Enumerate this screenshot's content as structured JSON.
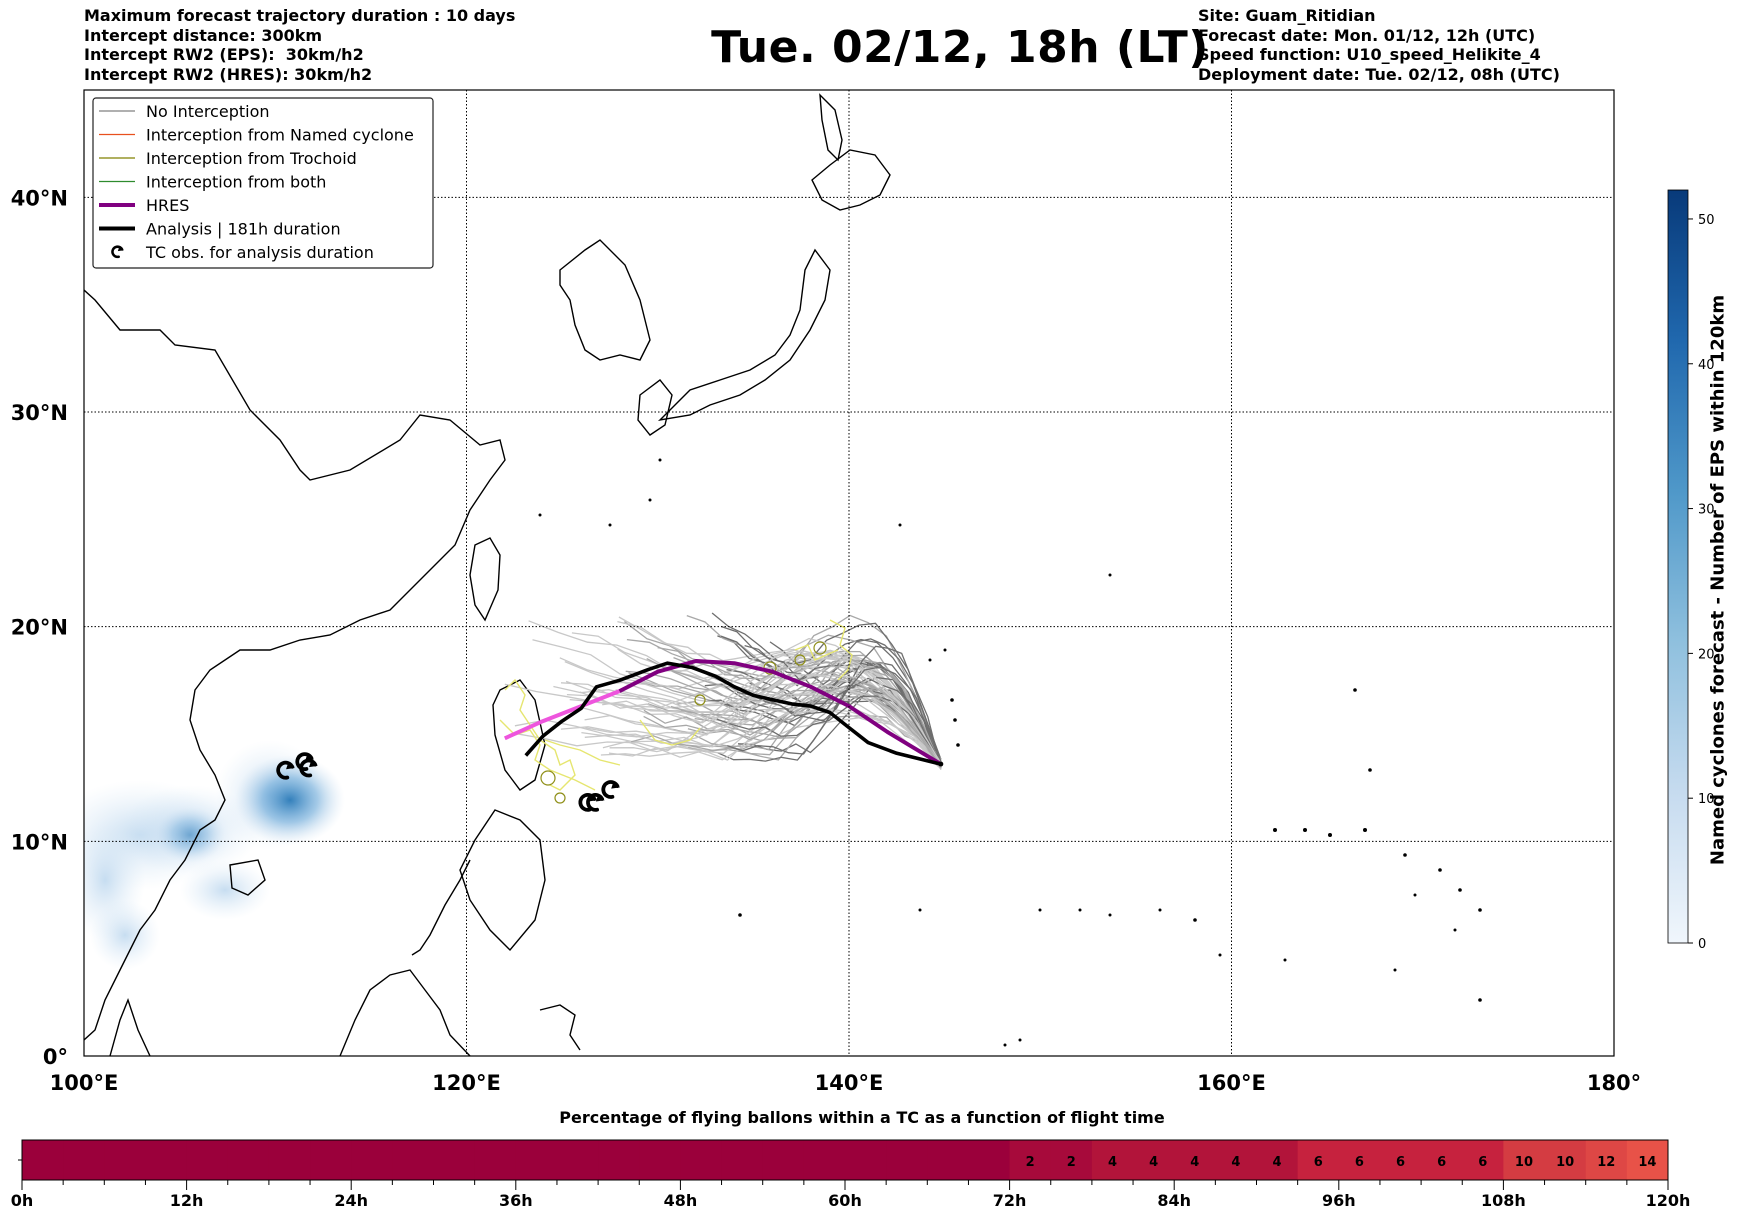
{
  "header": {
    "title": "Tue. 02/12, 18h (LT)",
    "left_lines": [
      "Maximum forecast trajectory duration : 10 days",
      "Intercept distance: 300km",
      "Intercept RW2 (EPS):  30km/h2",
      "Intercept RW2 (HRES): 30km/h2"
    ],
    "right_lines": [
      "Site: Guam_Ritidian",
      "Forecast date: Mon. 01/12, 12h (UTC)",
      "Speed function: U10_speed_Helikite_4",
      "Deployment date: Tue. 02/12, 08h (UTC)"
    ]
  },
  "legend": {
    "entries": [
      {
        "label": "No Interception",
        "color": "#808080",
        "style": "thin"
      },
      {
        "label": "Interception from Named cyclone",
        "color": "#e8501e",
        "style": "thin"
      },
      {
        "label": "Interception from Trochoid",
        "color": "#808000",
        "style": "thin"
      },
      {
        "label": "Interception from both",
        "color": "#2e8b2e",
        "style": "thin"
      },
      {
        "label": "HRES",
        "color": "#800080",
        "style": "thick"
      },
      {
        "label": "Analysis | 181h duration",
        "color": "#000000",
        "style": "thick"
      },
      {
        "label": "TC obs. for analysis duration",
        "color": "#000000",
        "style": "cyclone-symbol"
      }
    ]
  },
  "colors": {
    "no_interception": "#808080",
    "hres": "#800080",
    "hres_early": "#ee55dd",
    "analysis": "#000000",
    "trochoid": "#e6e670",
    "cyclone_density": "#2a7ab8",
    "timeline_dark": "#9b003b",
    "timeline_light": "#dd4a4c"
  },
  "chart_data": [
    {
      "type": "map",
      "projection": "plate-carree",
      "lon_range": [
        100,
        180
      ],
      "lat_range": [
        0,
        45
      ],
      "x_ticks": [
        100,
        120,
        140,
        160,
        180
      ],
      "x_tick_labels": [
        "100°E",
        "120°E",
        "140°E",
        "160°E",
        "180°"
      ],
      "y_ticks": [
        0,
        10,
        20,
        30,
        40
      ],
      "y_tick_labels": [
        "0°",
        "10°N",
        "20°N",
        "30°N",
        "40°N"
      ],
      "grid": true,
      "launch_site": {
        "name": "Guam_Ritidian",
        "lon": 144.8,
        "lat": 13.6
      },
      "series": [
        {
          "name": "HRES",
          "points": [
            [
              122.0,
              14.8
            ],
            [
              124,
              15.6
            ],
            [
              126,
              16.3
            ],
            [
              128,
              17.0
            ],
            [
              130,
              17.9
            ],
            [
              132,
              18.4
            ],
            [
              134,
              18.3
            ],
            [
              136,
              17.9
            ],
            [
              138,
              17.2
            ],
            [
              140,
              16.3
            ],
            [
              142,
              15.1
            ],
            [
              144.8,
              13.6
            ]
          ]
        },
        {
          "name": "Analysis | 181h duration",
          "points": [
            [
              123.1,
              14.0
            ],
            [
              124,
              14.9
            ],
            [
              125,
              15.6
            ],
            [
              126,
              16.2
            ],
            [
              126.8,
              17.2
            ],
            [
              128,
              17.5
            ],
            [
              129.5,
              18.0
            ],
            [
              130.5,
              18.3
            ],
            [
              131.8,
              18.1
            ],
            [
              133,
              17.7
            ],
            [
              134,
              17.2
            ],
            [
              135,
              16.8
            ],
            [
              136,
              16.6
            ],
            [
              137,
              16.4
            ],
            [
              138,
              16.3
            ],
            [
              139,
              16.0
            ],
            [
              140,
              15.3
            ],
            [
              141,
              14.6
            ],
            [
              142.5,
              14.1
            ],
            [
              144.8,
              13.6
            ]
          ]
        }
      ],
      "tc_obs": [
        [
          110.5,
          13.3
        ],
        [
          111.5,
          13.7
        ],
        [
          111.7,
          13.4
        ],
        [
          126.3,
          11.8
        ],
        [
          126.7,
          11.8
        ],
        [
          127.5,
          12.4
        ]
      ],
      "colorbar": {
        "label": "Named cyclones forecast - Number of EPS within 120km",
        "range": [
          0,
          52
        ],
        "ticks": [
          0,
          10,
          20,
          30,
          40,
          50
        ]
      }
    },
    {
      "type": "heatmap",
      "title": "Percentage of flying ballons within a TC as a function of flight time",
      "x_range_hours": [
        0,
        120
      ],
      "x_tick_labels": [
        "0h",
        "12h",
        "24h",
        "36h",
        "48h",
        "60h",
        "72h",
        "84h",
        "96h",
        "108h",
        "120h"
      ],
      "bin_hours": 3,
      "values": [
        0,
        0,
        0,
        0,
        0,
        0,
        0,
        0,
        0,
        0,
        0,
        0,
        0,
        0,
        0,
        0,
        0,
        0,
        0,
        0,
        0,
        0,
        0,
        0,
        2,
        2,
        4,
        4,
        4,
        4,
        4,
        6,
        6,
        6,
        6,
        6,
        10,
        10,
        12,
        14
      ]
    }
  ]
}
